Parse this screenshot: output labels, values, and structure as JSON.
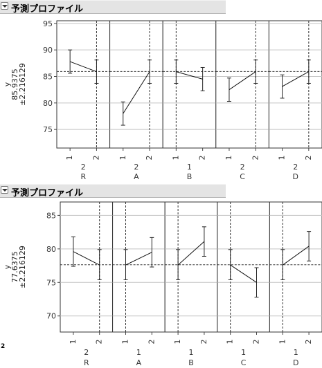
{
  "profilers": [
    {
      "header_title": "予測プロファイル",
      "ylabel_name": "y",
      "ylabel_value": "85.9375",
      "ylabel_ci": "±2.216129",
      "y_ticks": [
        "75",
        "80",
        "85",
        "90",
        "95"
      ],
      "x_tick_labels": [
        "1",
        "2"
      ],
      "chart_data": {
        "type": "line",
        "subtype": "prediction-profiler",
        "ylim": [
          71.5,
          95.5
        ],
        "reference_y": 85.9375,
        "factors": [
          {
            "name": "R",
            "current": "2",
            "x": [
              "1",
              "2"
            ],
            "y": [
              87.8,
              85.9
            ],
            "ci_low": [
              85.6,
              83.7
            ],
            "ci_high": [
              90.0,
              88.1
            ]
          },
          {
            "name": "A",
            "current": "2",
            "x": [
              "1",
              "2"
            ],
            "y": [
              78.0,
              85.9
            ],
            "ci_low": [
              75.8,
              83.7
            ],
            "ci_high": [
              80.2,
              88.1
            ]
          },
          {
            "name": "B",
            "current": "1",
            "x": [
              "1",
              "2"
            ],
            "y": [
              85.9,
              84.5
            ],
            "ci_low": [
              83.7,
              82.3
            ],
            "ci_high": [
              88.1,
              86.7
            ]
          },
          {
            "name": "C",
            "current": "2",
            "x": [
              "1",
              "2"
            ],
            "y": [
              82.5,
              85.9
            ],
            "ci_low": [
              80.3,
              83.7
            ],
            "ci_high": [
              84.7,
              88.1
            ]
          },
          {
            "name": "D",
            "current": "2",
            "x": [
              "1",
              "2"
            ],
            "y": [
              83.1,
              85.9
            ],
            "ci_low": [
              80.9,
              83.7
            ],
            "ci_high": [
              85.3,
              88.1
            ]
          }
        ]
      }
    },
    {
      "header_title": "予測プロファイル",
      "ylabel_name": "y",
      "ylabel_value": "77.6375",
      "ylabel_ci": "±2.216129",
      "y_ticks": [
        "70",
        "75",
        "80",
        "85"
      ],
      "x_tick_labels": [
        "1",
        "2"
      ],
      "corner_label": "2",
      "chart_data": {
        "type": "line",
        "subtype": "prediction-profiler",
        "ylim": [
          67.6,
          87.0
        ],
        "reference_y": 77.6375,
        "factors": [
          {
            "name": "R",
            "current": "2",
            "x": [
              "1",
              "2"
            ],
            "y": [
              79.6,
              77.6
            ],
            "ci_low": [
              77.4,
              75.4
            ],
            "ci_high": [
              81.8,
              79.9
            ]
          },
          {
            "name": "A",
            "current": "1",
            "x": [
              "1",
              "2"
            ],
            "y": [
              77.6,
              79.5
            ],
            "ci_low": [
              75.4,
              77.3
            ],
            "ci_high": [
              79.9,
              81.7
            ]
          },
          {
            "name": "B",
            "current": "1",
            "x": [
              "1",
              "2"
            ],
            "y": [
              77.6,
              81.1
            ],
            "ci_low": [
              75.4,
              78.9
            ],
            "ci_high": [
              79.9,
              83.3
            ]
          },
          {
            "name": "C",
            "current": "1",
            "x": [
              "1",
              "2"
            ],
            "y": [
              77.6,
              75.0
            ],
            "ci_low": [
              75.4,
              72.8
            ],
            "ci_high": [
              79.9,
              77.2
            ]
          },
          {
            "name": "D",
            "current": "1",
            "x": [
              "1",
              "2"
            ],
            "y": [
              77.6,
              80.4
            ],
            "ci_low": [
              75.4,
              78.2
            ],
            "ci_high": [
              79.9,
              82.6
            ]
          }
        ]
      }
    }
  ]
}
